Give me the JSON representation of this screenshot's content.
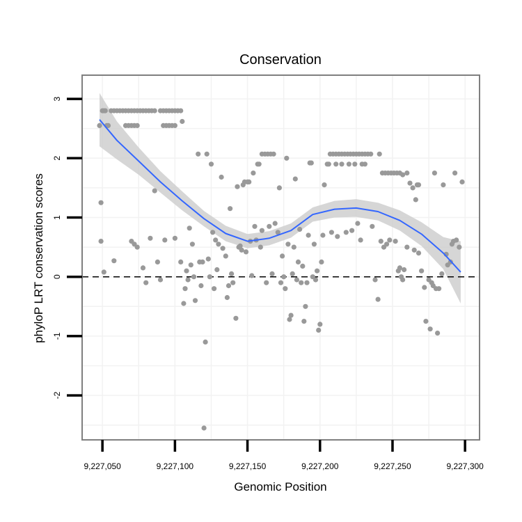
{
  "chart_data": {
    "type": "scatter",
    "title": "Conservation",
    "xlabel": "Genomic Position",
    "ylabel": "phyloP LRT conservation scores",
    "xlim": [
      9227036,
      9227310
    ],
    "ylim": [
      -2.75,
      3.4
    ],
    "x_ticks": [
      9227050,
      9227100,
      9227150,
      9227200,
      9227250,
      9227300
    ],
    "x_tick_labels": [
      "9,227,050",
      "9,227,100",
      "9,227,150",
      "9,227,200",
      "9,227,250",
      "9,227,300"
    ],
    "y_ticks": [
      -2,
      -1,
      0,
      1,
      2,
      3
    ],
    "y_tick_labels": [
      "-2",
      "-1",
      "0",
      "1",
      "2",
      "3"
    ],
    "reference_line": {
      "y": 0,
      "style": "dashed"
    },
    "colors": {
      "points": "#999999",
      "smooth": "#3366ff",
      "ribbon": "#cccccc",
      "panel_border": "#7f7f7f",
      "grid": "#f2f2f2"
    },
    "smooth": {
      "name": "loess fit",
      "x": [
        9227048,
        9227060,
        9227075,
        9227090,
        9227105,
        9227120,
        9227135,
        9227150,
        9227165,
        9227180,
        9227195,
        9227210,
        9227225,
        9227240,
        9227255,
        9227270,
        9227285,
        9227297
      ],
      "y": [
        2.65,
        2.3,
        1.95,
        1.6,
        1.28,
        0.98,
        0.73,
        0.6,
        0.65,
        0.78,
        1.05,
        1.14,
        1.16,
        1.1,
        0.95,
        0.72,
        0.4,
        0.08
      ],
      "lower": [
        2.2,
        1.98,
        1.72,
        1.42,
        1.12,
        0.85,
        0.6,
        0.48,
        0.53,
        0.66,
        0.93,
        1.0,
        1.01,
        0.95,
        0.78,
        0.52,
        0.13,
        -0.45
      ],
      "upper": [
        3.1,
        2.62,
        2.18,
        1.78,
        1.44,
        1.11,
        0.86,
        0.72,
        0.77,
        0.9,
        1.17,
        1.28,
        1.31,
        1.25,
        1.12,
        0.92,
        0.67,
        0.6
      ]
    },
    "points": [
      {
        "x": 9227048,
        "y": 2.55
      },
      {
        "x": 9227050,
        "y": 2.8
      },
      {
        "x": 9227051,
        "y": 2.8
      },
      {
        "x": 9227052,
        "y": 2.8
      },
      {
        "x": 9227053,
        "y": 2.55
      },
      {
        "x": 9227054,
        "y": 2.55
      },
      {
        "x": 9227056,
        "y": 2.8
      },
      {
        "x": 9227058,
        "y": 2.8
      },
      {
        "x": 9227060,
        "y": 2.8
      },
      {
        "x": 9227062,
        "y": 2.8
      },
      {
        "x": 9227064,
        "y": 2.8
      },
      {
        "x": 9227066,
        "y": 2.8
      },
      {
        "x": 9227068,
        "y": 2.8
      },
      {
        "x": 9227070,
        "y": 2.8
      },
      {
        "x": 9227072,
        "y": 2.8
      },
      {
        "x": 9227074,
        "y": 2.8
      },
      {
        "x": 9227076,
        "y": 2.8
      },
      {
        "x": 9227078,
        "y": 2.8
      },
      {
        "x": 9227080,
        "y": 2.8
      },
      {
        "x": 9227082,
        "y": 2.8
      },
      {
        "x": 9227084,
        "y": 2.8
      },
      {
        "x": 9227086,
        "y": 2.8
      },
      {
        "x": 9227090,
        "y": 2.8
      },
      {
        "x": 9227092,
        "y": 2.8
      },
      {
        "x": 9227094,
        "y": 2.8
      },
      {
        "x": 9227096,
        "y": 2.8
      },
      {
        "x": 9227098,
        "y": 2.8
      },
      {
        "x": 9227100,
        "y": 2.8
      },
      {
        "x": 9227102,
        "y": 2.8
      },
      {
        "x": 9227104,
        "y": 2.8
      },
      {
        "x": 9227066,
        "y": 2.55
      },
      {
        "x": 9227068,
        "y": 2.55
      },
      {
        "x": 9227070,
        "y": 2.55
      },
      {
        "x": 9227072,
        "y": 2.55
      },
      {
        "x": 9227074,
        "y": 2.55
      },
      {
        "x": 9227092,
        "y": 2.55
      },
      {
        "x": 9227094,
        "y": 2.55
      },
      {
        "x": 9227096,
        "y": 2.55
      },
      {
        "x": 9227098,
        "y": 2.55
      },
      {
        "x": 9227100,
        "y": 2.55
      },
      {
        "x": 9227105,
        "y": 2.62
      },
      {
        "x": 9227049,
        "y": 1.25
      },
      {
        "x": 9227049,
        "y": 0.6
      },
      {
        "x": 9227051,
        "y": 0.08
      },
      {
        "x": 9227058,
        "y": 0.27
      },
      {
        "x": 9227070,
        "y": 0.6
      },
      {
        "x": 9227072,
        "y": 0.55
      },
      {
        "x": 9227074,
        "y": 0.5
      },
      {
        "x": 9227078,
        "y": 0.15
      },
      {
        "x": 9227080,
        "y": -0.1
      },
      {
        "x": 9227083,
        "y": 0.65
      },
      {
        "x": 9227086,
        "y": 1.45
      },
      {
        "x": 9227088,
        "y": 0.25
      },
      {
        "x": 9227090,
        "y": -0.05
      },
      {
        "x": 9227093,
        "y": 0.62
      },
      {
        "x": 9227100,
        "y": 0.65
      },
      {
        "x": 9227104,
        "y": 0.25
      },
      {
        "x": 9227106,
        "y": -0.45
      },
      {
        "x": 9227107,
        "y": -0.2
      },
      {
        "x": 9227108,
        "y": 0.1
      },
      {
        "x": 9227109,
        "y": -0.05
      },
      {
        "x": 9227110,
        "y": 0.82
      },
      {
        "x": 9227111,
        "y": 0.2
      },
      {
        "x": 9227112,
        "y": 0.55
      },
      {
        "x": 9227113,
        "y": 0.0
      },
      {
        "x": 9227114,
        "y": -0.4
      },
      {
        "x": 9227116,
        "y": 2.07
      },
      {
        "x": 9227117,
        "y": 0.25
      },
      {
        "x": 9227118,
        "y": -0.15
      },
      {
        "x": 9227119,
        "y": 0.25
      },
      {
        "x": 9227120,
        "y": -2.55
      },
      {
        "x": 9227121,
        "y": -1.1
      },
      {
        "x": 9227122,
        "y": 2.07
      },
      {
        "x": 9227123,
        "y": 0.3
      },
      {
        "x": 9227124,
        "y": 0.0
      },
      {
        "x": 9227125,
        "y": 1.9
      },
      {
        "x": 9227126,
        "y": 0.75
      },
      {
        "x": 9227127,
        "y": -0.2
      },
      {
        "x": 9227128,
        "y": 0.62
      },
      {
        "x": 9227129,
        "y": 0.12
      },
      {
        "x": 9227130,
        "y": 0.55
      },
      {
        "x": 9227132,
        "y": 1.68
      },
      {
        "x": 9227133,
        "y": 0.48
      },
      {
        "x": 9227135,
        "y": 0.35
      },
      {
        "x": 9227136,
        "y": -0.35
      },
      {
        "x": 9227137,
        "y": -0.15
      },
      {
        "x": 9227138,
        "y": 1.15
      },
      {
        "x": 9227139,
        "y": 0.05
      },
      {
        "x": 9227140,
        "y": -0.1
      },
      {
        "x": 9227142,
        "y": -0.7
      },
      {
        "x": 9227143,
        "y": 1.52
      },
      {
        "x": 9227144,
        "y": 0.5
      },
      {
        "x": 9227145,
        "y": 0.52
      },
      {
        "x": 9227146,
        "y": 0.45
      },
      {
        "x": 9227147,
        "y": 1.55
      },
      {
        "x": 9227148,
        "y": 1.6
      },
      {
        "x": 9227149,
        "y": 0.42
      },
      {
        "x": 9227150,
        "y": 1.6
      },
      {
        "x": 9227151,
        "y": 1.6
      },
      {
        "x": 9227152,
        "y": 0.6
      },
      {
        "x": 9227153,
        "y": 0.02
      },
      {
        "x": 9227154,
        "y": 1.75
      },
      {
        "x": 9227155,
        "y": 0.85
      },
      {
        "x": 9227156,
        "y": 0.62
      },
      {
        "x": 9227157,
        "y": 1.9
      },
      {
        "x": 9227158,
        "y": 1.9
      },
      {
        "x": 9227159,
        "y": 0.5
      },
      {
        "x": 9227160,
        "y": 0.78
      },
      {
        "x": 9227160,
        "y": 2.07
      },
      {
        "x": 9227162,
        "y": 2.07
      },
      {
        "x": 9227164,
        "y": 2.07
      },
      {
        "x": 9227166,
        "y": 2.07
      },
      {
        "x": 9227168,
        "y": 2.07
      },
      {
        "x": 9227163,
        "y": -0.1
      },
      {
        "x": 9227165,
        "y": 0.85
      },
      {
        "x": 9227167,
        "y": 0.05
      },
      {
        "x": 9227169,
        "y": 0.9
      },
      {
        "x": 9227171,
        "y": 0.75
      },
      {
        "x": 9227172,
        "y": 1.5
      },
      {
        "x": 9227173,
        "y": -0.1
      },
      {
        "x": 9227174,
        "y": 0.35
      },
      {
        "x": 9227175,
        "y": 0.0
      },
      {
        "x": 9227176,
        "y": -0.2
      },
      {
        "x": 9227177,
        "y": 2.0
      },
      {
        "x": 9227178,
        "y": 0.55
      },
      {
        "x": 9227179,
        "y": -0.72
      },
      {
        "x": 9227180,
        "y": -0.65
      },
      {
        "x": 9227181,
        "y": 0.05
      },
      {
        "x": 9227182,
        "y": 0.5
      },
      {
        "x": 9227183,
        "y": 1.65
      },
      {
        "x": 9227184,
        "y": -0.05
      },
      {
        "x": 9227185,
        "y": 0.25
      },
      {
        "x": 9227186,
        "y": 0.8
      },
      {
        "x": 9227187,
        "y": -0.1
      },
      {
        "x": 9227188,
        "y": 0.18
      },
      {
        "x": 9227189,
        "y": -0.75
      },
      {
        "x": 9227190,
        "y": -0.5
      },
      {
        "x": 9227191,
        "y": -0.1
      },
      {
        "x": 9227192,
        "y": 0.7
      },
      {
        "x": 9227193,
        "y": 1.92
      },
      {
        "x": 9227194,
        "y": 1.92
      },
      {
        "x": 9227195,
        "y": 0.0
      },
      {
        "x": 9227196,
        "y": 0.55
      },
      {
        "x": 9227197,
        "y": -0.05
      },
      {
        "x": 9227198,
        "y": 0.1
      },
      {
        "x": 9227199,
        "y": -0.9
      },
      {
        "x": 9227200,
        "y": -0.8
      },
      {
        "x": 9227201,
        "y": 0.25
      },
      {
        "x": 9227202,
        "y": 0.7
      },
      {
        "x": 9227203,
        "y": 1.55
      },
      {
        "x": 9227205,
        "y": 1.9
      },
      {
        "x": 9227206,
        "y": 1.9
      },
      {
        "x": 9227207,
        "y": 2.07
      },
      {
        "x": 9227209,
        "y": 2.07
      },
      {
        "x": 9227211,
        "y": 2.07
      },
      {
        "x": 9227213,
        "y": 2.07
      },
      {
        "x": 9227215,
        "y": 2.07
      },
      {
        "x": 9227217,
        "y": 2.07
      },
      {
        "x": 9227219,
        "y": 2.07
      },
      {
        "x": 9227221,
        "y": 2.07
      },
      {
        "x": 9227223,
        "y": 2.07
      },
      {
        "x": 9227225,
        "y": 2.07
      },
      {
        "x": 9227227,
        "y": 2.07
      },
      {
        "x": 9227229,
        "y": 2.07
      },
      {
        "x": 9227231,
        "y": 2.07
      },
      {
        "x": 9227233,
        "y": 2.07
      },
      {
        "x": 9227235,
        "y": 2.07
      },
      {
        "x": 9227211,
        "y": 1.9
      },
      {
        "x": 9227215,
        "y": 1.9
      },
      {
        "x": 9227220,
        "y": 1.9
      },
      {
        "x": 9227224,
        "y": 1.9
      },
      {
        "x": 9227229,
        "y": 1.9
      },
      {
        "x": 9227231,
        "y": 1.9
      },
      {
        "x": 9227241,
        "y": 2.07
      },
      {
        "x": 9227208,
        "y": 0.75
      },
      {
        "x": 9227212,
        "y": 0.68
      },
      {
        "x": 9227218,
        "y": 0.75
      },
      {
        "x": 9227222,
        "y": 0.78
      },
      {
        "x": 9227226,
        "y": 0.9
      },
      {
        "x": 9227228,
        "y": 0.62
      },
      {
        "x": 9227236,
        "y": 0.85
      },
      {
        "x": 9227238,
        "y": -0.05
      },
      {
        "x": 9227240,
        "y": -0.38
      },
      {
        "x": 9227242,
        "y": 0.6
      },
      {
        "x": 9227243,
        "y": 1.75
      },
      {
        "x": 9227245,
        "y": 1.75
      },
      {
        "x": 9227247,
        "y": 1.75
      },
      {
        "x": 9227249,
        "y": 1.75
      },
      {
        "x": 9227251,
        "y": 1.75
      },
      {
        "x": 9227253,
        "y": 1.75
      },
      {
        "x": 9227255,
        "y": 1.75
      },
      {
        "x": 9227257,
        "y": 1.72
      },
      {
        "x": 9227260,
        "y": 1.75
      },
      {
        "x": 9227244,
        "y": 0.5
      },
      {
        "x": 9227246,
        "y": 0.55
      },
      {
        "x": 9227248,
        "y": 0.62
      },
      {
        "x": 9227252,
        "y": 0.6
      },
      {
        "x": 9227254,
        "y": 0.1
      },
      {
        "x": 9227255,
        "y": 0.15
      },
      {
        "x": 9227256,
        "y": 0.0
      },
      {
        "x": 9227257,
        "y": -0.05
      },
      {
        "x": 9227258,
        "y": 0.12
      },
      {
        "x": 9227260,
        "y": 0.5
      },
      {
        "x": 9227262,
        "y": 1.58
      },
      {
        "x": 9227264,
        "y": 1.5
      },
      {
        "x": 9227266,
        "y": 1.3
      },
      {
        "x": 9227265,
        "y": 0.45
      },
      {
        "x": 9227267,
        "y": 1.55
      },
      {
        "x": 9227268,
        "y": 1.55
      },
      {
        "x": 9227268,
        "y": 0.4
      },
      {
        "x": 9227270,
        "y": 0.1
      },
      {
        "x": 9227272,
        "y": -0.18
      },
      {
        "x": 9227273,
        "y": -0.75
      },
      {
        "x": 9227275,
        "y": -0.05
      },
      {
        "x": 9227276,
        "y": -0.88
      },
      {
        "x": 9227277,
        "y": -0.1
      },
      {
        "x": 9227278,
        "y": -0.15
      },
      {
        "x": 9227279,
        "y": 1.75
      },
      {
        "x": 9227280,
        "y": -0.2
      },
      {
        "x": 9227281,
        "y": -0.95
      },
      {
        "x": 9227282,
        "y": -0.2
      },
      {
        "x": 9227284,
        "y": 0.05
      },
      {
        "x": 9227285,
        "y": 1.55
      },
      {
        "x": 9227287,
        "y": 0.38
      },
      {
        "x": 9227288,
        "y": 0.2
      },
      {
        "x": 9227290,
        "y": 0.25
      },
      {
        "x": 9227291,
        "y": 0.55
      },
      {
        "x": 9227292,
        "y": 0.6
      },
      {
        "x": 9227293,
        "y": 1.75
      },
      {
        "x": 9227294,
        "y": 0.62
      },
      {
        "x": 9227296,
        "y": 0.5
      },
      {
        "x": 9227298,
        "y": 1.6
      }
    ]
  }
}
